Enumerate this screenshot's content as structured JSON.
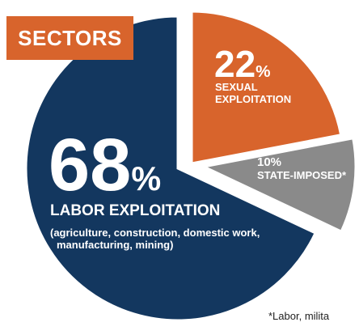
{
  "header": {
    "title": "SECTORS"
  },
  "chart_data": {
    "type": "pie",
    "slices": [
      {
        "value": 68,
        "pct_label": "68",
        "label": "LABOR EXPLOITATION",
        "sublabel_line1": "(agriculture, construction, domestic work,",
        "sublabel_line2": "manufacturing, mining)",
        "color": "#13375f"
      },
      {
        "value": 22,
        "pct_label": "22",
        "label_line1": "SEXUAL",
        "label_line2": "EXPLOITATION",
        "color": "#d8642c"
      },
      {
        "value": 10,
        "pct_label": "10%",
        "label": "STATE-IMPOSED*",
        "color": "#8a8a8a"
      }
    ],
    "percent_sign": "%"
  },
  "footnote": "*Labor, milita"
}
